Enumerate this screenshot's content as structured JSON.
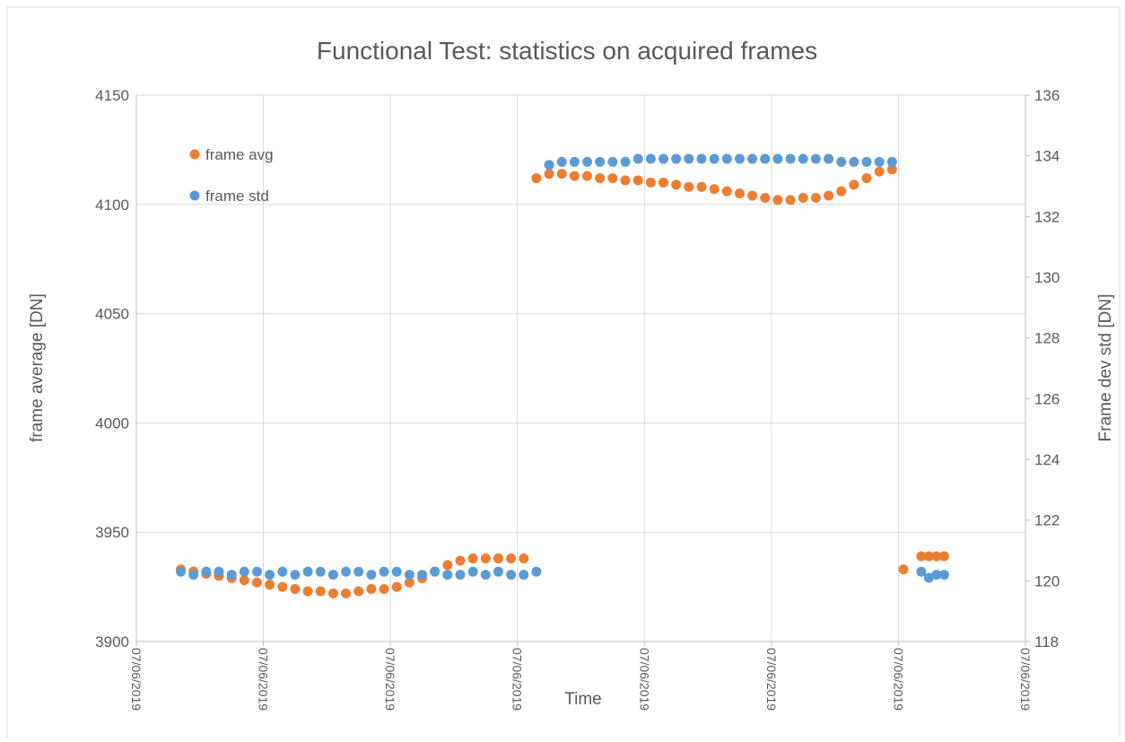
{
  "chart_data": {
    "type": "scatter",
    "title": "Functional Test: statistics on acquired frames",
    "x_label": "Time",
    "y_label": "frame average [DN]",
    "y2_label": "Frame dev std [DN]",
    "xlim": [
      0,
      7
    ],
    "xticks": [
      {
        "value": 0,
        "label": "07/06/2019"
      },
      {
        "value": 1,
        "label": "07/06/2019"
      },
      {
        "value": 2,
        "label": "07/06/2019"
      },
      {
        "value": 3,
        "label": "07/06/2019"
      },
      {
        "value": 4,
        "label": "07/06/2019"
      },
      {
        "value": 5,
        "label": "07/06/2019"
      },
      {
        "value": 6,
        "label": "07/06/2019"
      },
      {
        "value": 7,
        "label": "07/06/2019"
      }
    ],
    "ylim": [
      3900,
      4150
    ],
    "yticks": [
      3900,
      3950,
      4000,
      4050,
      4100,
      4150
    ],
    "y2lim": [
      118,
      136
    ],
    "y2ticks": [
      118,
      120,
      122,
      124,
      126,
      128,
      130,
      132,
      134,
      136
    ],
    "grid": true,
    "legend": "upper left",
    "series": [
      {
        "name": "frame avg",
        "color": "#ed7d31",
        "axis": "y",
        "x": [
          0.35,
          0.45,
          0.55,
          0.65,
          0.75,
          0.85,
          0.95,
          1.05,
          1.15,
          1.25,
          1.35,
          1.45,
          1.55,
          1.65,
          1.75,
          1.85,
          1.95,
          2.05,
          2.15,
          2.25,
          2.35,
          2.45,
          2.55,
          2.65,
          2.75,
          2.85,
          2.95,
          3.05,
          3.15,
          3.25,
          3.35,
          3.45,
          3.55,
          3.65,
          3.75,
          3.85,
          3.95,
          4.05,
          4.15,
          4.25,
          4.35,
          4.45,
          4.55,
          4.65,
          4.75,
          4.85,
          4.95,
          5.05,
          5.15,
          5.25,
          5.35,
          5.45,
          5.55,
          5.65,
          5.75,
          5.85,
          5.95,
          6.04,
          6.18,
          6.24,
          6.3,
          6.36
        ],
        "values": [
          3933,
          3932,
          3931,
          3930,
          3929,
          3928,
          3927,
          3926,
          3925,
          3924,
          3923,
          3923,
          3922,
          3922,
          3923,
          3924,
          3924,
          3925,
          3927,
          3929,
          3932,
          3935,
          3937,
          3938,
          3938,
          3938,
          3938,
          3938,
          4112,
          4114,
          4114,
          4113,
          4113,
          4112,
          4112,
          4111,
          4111,
          4110,
          4110,
          4109,
          4108,
          4108,
          4107,
          4106,
          4105,
          4104,
          4103,
          4102,
          4102,
          4103,
          4103,
          4104,
          4106,
          4109,
          4112,
          4115,
          4116,
          3933,
          3939,
          3939,
          3939,
          3939
        ]
      },
      {
        "name": "frame std",
        "color": "#5b9bd5",
        "axis": "y2",
        "x": [
          0.35,
          0.45,
          0.55,
          0.65,
          0.75,
          0.85,
          0.95,
          1.05,
          1.15,
          1.25,
          1.35,
          1.45,
          1.55,
          1.65,
          1.75,
          1.85,
          1.95,
          2.05,
          2.15,
          2.25,
          2.35,
          2.45,
          2.55,
          2.65,
          2.75,
          2.85,
          2.95,
          3.05,
          3.15,
          3.25,
          3.35,
          3.45,
          3.55,
          3.65,
          3.75,
          3.85,
          3.95,
          4.05,
          4.15,
          4.25,
          4.35,
          4.45,
          4.55,
          4.65,
          4.75,
          4.85,
          4.95,
          5.05,
          5.15,
          5.25,
          5.35,
          5.45,
          5.55,
          5.65,
          5.75,
          5.85,
          5.95,
          6.18,
          6.24,
          6.3,
          6.36
        ],
        "values": [
          120.3,
          120.2,
          120.3,
          120.3,
          120.2,
          120.3,
          120.3,
          120.2,
          120.3,
          120.2,
          120.3,
          120.3,
          120.2,
          120.3,
          120.3,
          120.2,
          120.3,
          120.3,
          120.2,
          120.2,
          120.3,
          120.2,
          120.2,
          120.3,
          120.2,
          120.3,
          120.2,
          120.2,
          120.3,
          133.7,
          133.8,
          133.8,
          133.8,
          133.8,
          133.8,
          133.8,
          133.9,
          133.9,
          133.9,
          133.9,
          133.9,
          133.9,
          133.9,
          133.9,
          133.9,
          133.9,
          133.9,
          133.9,
          133.9,
          133.9,
          133.9,
          133.9,
          133.8,
          133.8,
          133.8,
          133.8,
          133.8,
          120.3,
          120.1,
          120.2,
          120.2
        ]
      }
    ]
  }
}
